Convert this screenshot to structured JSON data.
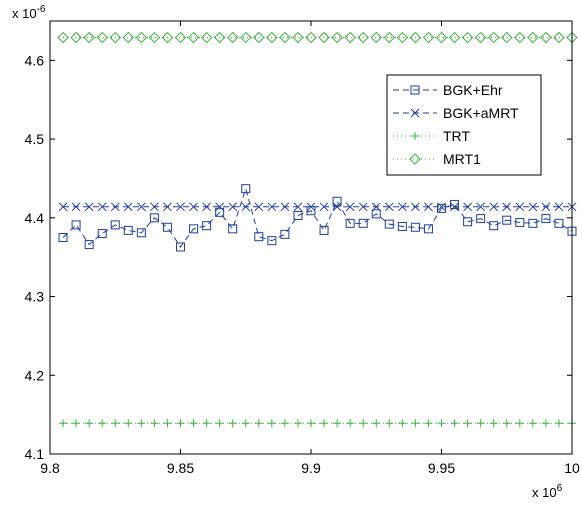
{
  "chart_data": {
    "type": "line",
    "grid": false,
    "legend_placement": "top-right",
    "x_exponent_label": "x 10",
    "x_exponent_power": "6",
    "y_exponent_label": "x 10",
    "y_exponent_power": "-6",
    "xlim": [
      9.8,
      10.0
    ],
    "ylim": [
      4.1,
      4.65
    ],
    "x_ticks": [
      9.8,
      9.85,
      9.9,
      9.95,
      10.0
    ],
    "x_tick_labels": [
      "9.8",
      "9.85",
      "9.9",
      "9.95",
      "10"
    ],
    "y_ticks": [
      4.1,
      4.2,
      4.3,
      4.4,
      4.5,
      4.6
    ],
    "y_tick_labels": [
      "4.1",
      "4.2",
      "4.3",
      "4.4",
      "4.5",
      "4.6"
    ],
    "x": [
      9.805,
      9.81,
      9.815,
      9.82,
      9.825,
      9.83,
      9.835,
      9.84,
      9.845,
      9.85,
      9.855,
      9.86,
      9.865,
      9.87,
      9.875,
      9.88,
      9.885,
      9.89,
      9.895,
      9.9,
      9.905,
      9.91,
      9.915,
      9.92,
      9.925,
      9.93,
      9.935,
      9.94,
      9.945,
      9.95,
      9.955,
      9.96,
      9.965,
      9.97,
      9.975,
      9.98,
      9.985,
      9.99,
      9.995,
      10.0
    ],
    "series": [
      {
        "name": "BGK+Ehr",
        "color": "#1f3f99",
        "marker": "square",
        "line": "dashed",
        "values": [
          4.375,
          4.391,
          4.366,
          4.38,
          4.391,
          4.384,
          4.381,
          4.4,
          4.388,
          4.363,
          4.386,
          4.39,
          4.407,
          4.386,
          4.437,
          4.376,
          4.371,
          4.379,
          4.403,
          4.409,
          4.384,
          4.421,
          4.393,
          4.393,
          4.405,
          4.392,
          4.389,
          4.388,
          4.386,
          4.412,
          4.417,
          4.395,
          4.399,
          4.39,
          4.397,
          4.394,
          4.393,
          4.399,
          4.393,
          4.383
        ]
      },
      {
        "name": "BGK+aMRT",
        "color": "#1f3f99",
        "marker": "x",
        "line": "dashed",
        "values": [
          4.414,
          4.414,
          4.414,
          4.414,
          4.414,
          4.414,
          4.414,
          4.414,
          4.414,
          4.414,
          4.414,
          4.414,
          4.414,
          4.414,
          4.414,
          4.414,
          4.414,
          4.414,
          4.414,
          4.414,
          4.414,
          4.414,
          4.414,
          4.414,
          4.414,
          4.414,
          4.414,
          4.414,
          4.414,
          4.414,
          4.414,
          4.414,
          4.414,
          4.414,
          4.414,
          4.414,
          4.414,
          4.414,
          4.414,
          4.414
        ]
      },
      {
        "name": "TRT",
        "color": "#3cb43c",
        "marker": "plus",
        "line": "dotted",
        "values": [
          4.139,
          4.139,
          4.139,
          4.139,
          4.139,
          4.139,
          4.139,
          4.139,
          4.139,
          4.139,
          4.139,
          4.139,
          4.139,
          4.139,
          4.139,
          4.139,
          4.139,
          4.139,
          4.139,
          4.139,
          4.139,
          4.139,
          4.139,
          4.139,
          4.139,
          4.139,
          4.139,
          4.139,
          4.139,
          4.139,
          4.139,
          4.139,
          4.139,
          4.139,
          4.139,
          4.139,
          4.139,
          4.139,
          4.139,
          4.139
        ]
      },
      {
        "name": "MRT1",
        "color": "#3cb43c",
        "marker": "diamond",
        "line": "dotted",
        "values": [
          4.629,
          4.629,
          4.629,
          4.629,
          4.629,
          4.629,
          4.629,
          4.629,
          4.629,
          4.629,
          4.629,
          4.629,
          4.629,
          4.629,
          4.629,
          4.629,
          4.629,
          4.629,
          4.629,
          4.629,
          4.629,
          4.629,
          4.629,
          4.629,
          4.629,
          4.629,
          4.629,
          4.629,
          4.629,
          4.629,
          4.629,
          4.629,
          4.629,
          4.629,
          4.629,
          4.629,
          4.629,
          4.629,
          4.629,
          4.629
        ]
      }
    ]
  }
}
